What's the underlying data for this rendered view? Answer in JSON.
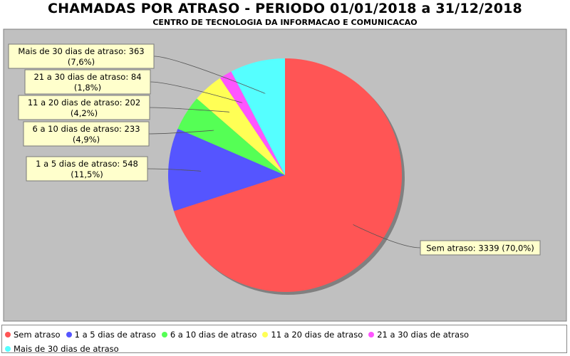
{
  "chart_data": {
    "type": "pie",
    "title": "CHAMADAS POR ATRASO - PERIODO 01/01/2018 a 31/12/2018",
    "subtitle": "CENTRO DE TECNOLOGIA DA INFORMACAO E COMUNICACAO",
    "legend_position": "bottom",
    "slices": [
      {
        "name": "Sem atraso",
        "value": 3339,
        "percent": "70,0%",
        "color": "#ff5555",
        "label_line1": "Sem atraso: 3339 (70,0%)",
        "label_line2": ""
      },
      {
        "name": "1 a 5 dias de atraso",
        "value": 548,
        "percent": "11,5%",
        "color": "#5555ff",
        "label_line1": "1 a 5 dias de atraso: 548",
        "label_line2": "(11,5%)"
      },
      {
        "name": "6 a 10 dias de atraso",
        "value": 233,
        "percent": "4,9%",
        "color": "#55ff55",
        "label_line1": "6 a 10 dias de atraso: 233",
        "label_line2": "(4,9%)"
      },
      {
        "name": "11 a 20 dias de atraso",
        "value": 202,
        "percent": "4,2%",
        "color": "#ffff55",
        "label_line1": "11 a 20 dias de atraso: 202",
        "label_line2": "(4,2%)"
      },
      {
        "name": "21 a 30 dias de atraso",
        "value": 84,
        "percent": "1,8%",
        "color": "#ff55ff",
        "label_line1": "21 a 30 dias de atraso: 84",
        "label_line2": "(1,8%)"
      },
      {
        "name": "Mais de 30 dias de atraso",
        "value": 363,
        "percent": "7,6%",
        "color": "#55ffff",
        "label_line1": "Mais de 30 dias de atraso: 363",
        "label_line2": "(7,6%)"
      }
    ]
  },
  "colors": {
    "plot_background": "#c0c0c0",
    "label_box_fill": "#ffffcc",
    "shadow": "#808080"
  }
}
